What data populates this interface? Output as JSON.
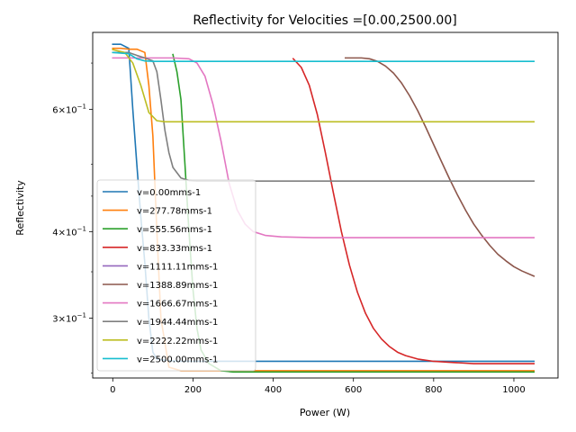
{
  "chart_data": {
    "type": "line",
    "title": "Reflectivity for Velocities =[0.00,2500.00]",
    "xlabel": "Power (W)",
    "ylabel": "Reflectivity",
    "yscale": "log",
    "xlim": [
      -50,
      1110
    ],
    "ylim": [
      0.246,
      0.775
    ],
    "xticks": [
      0,
      200,
      400,
      600,
      800,
      1000
    ],
    "xtick_labels": [
      "0",
      "200",
      "400",
      "600",
      "800",
      "1000"
    ],
    "yticks": [
      0.6,
      0.4,
      0.3
    ],
    "ytick_labels": [
      {
        "base": "6",
        "exp": "−1"
      },
      {
        "base": "4",
        "exp": "−1"
      },
      {
        "base": "3",
        "exp": "−1"
      }
    ],
    "grid": false,
    "legend_position": "lower-left",
    "series": [
      {
        "name": "v=0.00mms-1",
        "color": "#1f77b4",
        "x": [
          0,
          20,
          40,
          50,
          60,
          70,
          80,
          90,
          100,
          110,
          130,
          160,
          200,
          300,
          500,
          800,
          1050
        ],
        "y": [
          0.745,
          0.745,
          0.735,
          0.6,
          0.5,
          0.42,
          0.36,
          0.3,
          0.268,
          0.262,
          0.261,
          0.26,
          0.26,
          0.26,
          0.26,
          0.26,
          0.26
        ]
      },
      {
        "name": "v=277.78mms-1",
        "color": "#ff7f0e",
        "x": [
          0,
          20,
          40,
          60,
          80,
          90,
          100,
          110,
          120,
          140,
          170,
          200,
          300,
          600,
          1050
        ],
        "y": [
          0.735,
          0.735,
          0.733,
          0.733,
          0.725,
          0.65,
          0.55,
          0.4,
          0.3,
          0.255,
          0.252,
          0.252,
          0.252,
          0.252,
          0.252
        ]
      },
      {
        "name": "v=555.56mms-1",
        "color": "#2ca02c",
        "x": [
          150,
          160,
          170,
          180,
          190,
          200,
          210,
          220,
          240,
          270,
          300,
          500,
          1050
        ],
        "y": [
          0.72,
          0.68,
          0.62,
          0.5,
          0.4,
          0.33,
          0.29,
          0.27,
          0.258,
          0.252,
          0.251,
          0.251,
          0.251
        ]
      },
      {
        "name": "v=833.33mms-1",
        "color": "#d62728",
        "x": [
          450,
          470,
          490,
          510,
          530,
          550,
          570,
          590,
          610,
          630,
          650,
          670,
          690,
          710,
          730,
          760,
          800,
          850,
          900,
          1000,
          1050
        ],
        "y": [
          0.71,
          0.69,
          0.65,
          0.59,
          0.52,
          0.455,
          0.4,
          0.358,
          0.327,
          0.305,
          0.29,
          0.28,
          0.273,
          0.268,
          0.265,
          0.262,
          0.26,
          0.259,
          0.258,
          0.258,
          0.258
        ]
      },
      {
        "name": "v=1111.11mms-1",
        "color": "#9467bd",
        "x": [],
        "y": []
      },
      {
        "name": "v=1388.89mms-1",
        "color": "#8c564b",
        "x": [
          580,
          600,
          620,
          640,
          660,
          680,
          700,
          720,
          740,
          760,
          780,
          800,
          820,
          840,
          860,
          880,
          900,
          920,
          940,
          960,
          980,
          1000,
          1020,
          1050
        ],
        "y": [
          0.712,
          0.712,
          0.712,
          0.71,
          0.704,
          0.693,
          0.677,
          0.655,
          0.628,
          0.598,
          0.566,
          0.534,
          0.504,
          0.476,
          0.451,
          0.429,
          0.41,
          0.395,
          0.382,
          0.371,
          0.363,
          0.356,
          0.351,
          0.345
        ]
      },
      {
        "name": "v=1666.67mms-1",
        "color": "#e377c2",
        "x": [
          0,
          50,
          100,
          150,
          190,
          210,
          230,
          250,
          270,
          290,
          310,
          330,
          350,
          380,
          420,
          500,
          700,
          1050
        ],
        "y": [
          0.712,
          0.712,
          0.712,
          0.712,
          0.71,
          0.7,
          0.67,
          0.61,
          0.54,
          0.47,
          0.43,
          0.41,
          0.4,
          0.395,
          0.393,
          0.392,
          0.392,
          0.392
        ]
      },
      {
        "name": "v=1944.44mms-1",
        "color": "#7f7f7f",
        "x": [
          0,
          40,
          60,
          80,
          100,
          110,
          120,
          130,
          140,
          150,
          170,
          190,
          210,
          250,
          400,
          1050
        ],
        "y": [
          0.725,
          0.725,
          0.718,
          0.712,
          0.705,
          0.68,
          0.62,
          0.56,
          0.52,
          0.495,
          0.478,
          0.474,
          0.473,
          0.473,
          0.473,
          0.473
        ]
      },
      {
        "name": "v=2222.22mms-1",
        "color": "#bcbd22",
        "x": [
          0,
          30,
          50,
          70,
          90,
          110,
          130,
          200,
          1050
        ],
        "y": [
          0.732,
          0.725,
          0.7,
          0.65,
          0.594,
          0.578,
          0.576,
          0.576,
          0.576
        ]
      },
      {
        "name": "v=2500.00mms-1",
        "color": "#17becf",
        "x": [
          0,
          40,
          60,
          80,
          100,
          200,
          1050
        ],
        "y": [
          0.725,
          0.722,
          0.71,
          0.705,
          0.704,
          0.704,
          0.704
        ]
      }
    ]
  }
}
